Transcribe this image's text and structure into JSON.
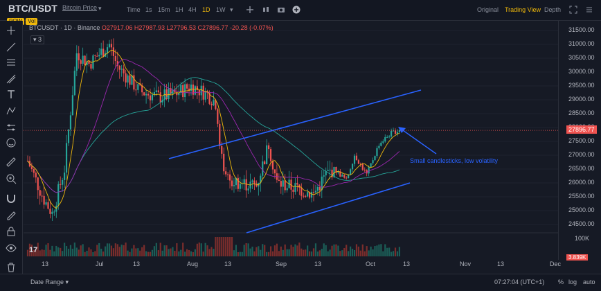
{
  "header": {
    "symbol": "BTC/USDT",
    "symbol_sub": "Bitcoin Price",
    "timeframes": [
      "Time",
      "1s",
      "15m",
      "1H",
      "4H",
      "1D",
      "1W"
    ],
    "active_timeframe": "1D",
    "views": [
      "Original",
      "Trading View",
      "Depth"
    ],
    "active_view": "Trading View",
    "badges": [
      "POW",
      "Vol"
    ]
  },
  "chart": {
    "legend_symbol": "BTCUSDT · 1D · Binance",
    "ohlc": "O27917.06 H27987.93 L27796.53 C27896.77 -20.28 (-0.07%)",
    "indicator_count": "3",
    "current_price": "27896.77",
    "volume_label": "100K",
    "volume_current": "3.839K",
    "annotation": "Small candlesticks, low volatility",
    "y_ticks": [
      "31500.00",
      "31000.00",
      "30500.00",
      "30000.00",
      "29500.00",
      "29000.00",
      "28500.00",
      "28000.00",
      "27500.00",
      "27000.00",
      "26500.00",
      "26000.00",
      "25500.00",
      "25000.00",
      "24500.00"
    ],
    "x_ticks": [
      "13",
      "Jul",
      "13",
      "Aug",
      "13",
      "Sep",
      "13",
      "Oct",
      "13",
      "Nov",
      "13",
      "Dec"
    ],
    "colors": {
      "up": "#26a69a",
      "down": "#ef5350",
      "channel": "#2962ff",
      "ma_slow": "#26a69a",
      "ma_mid": "#9c27b0",
      "ma_fast": "#f0b90b"
    }
  },
  "bottom": {
    "date_range": "Date Range",
    "clock": "07:27:04 (UTC+1)",
    "scale_options": [
      "%",
      "log",
      "auto"
    ]
  },
  "chart_data": {
    "type": "candlestick",
    "ylim": [
      24500,
      31500
    ],
    "series": [
      {
        "name": "BTCUSDT",
        "trend": "rally Jun→Jul to ~31000, pullback to ~29000, drop mid-Aug to ~26000, range Sep ~25500–26500, rise into Oct to ~27900"
      }
    ],
    "last": 27896.77
  }
}
